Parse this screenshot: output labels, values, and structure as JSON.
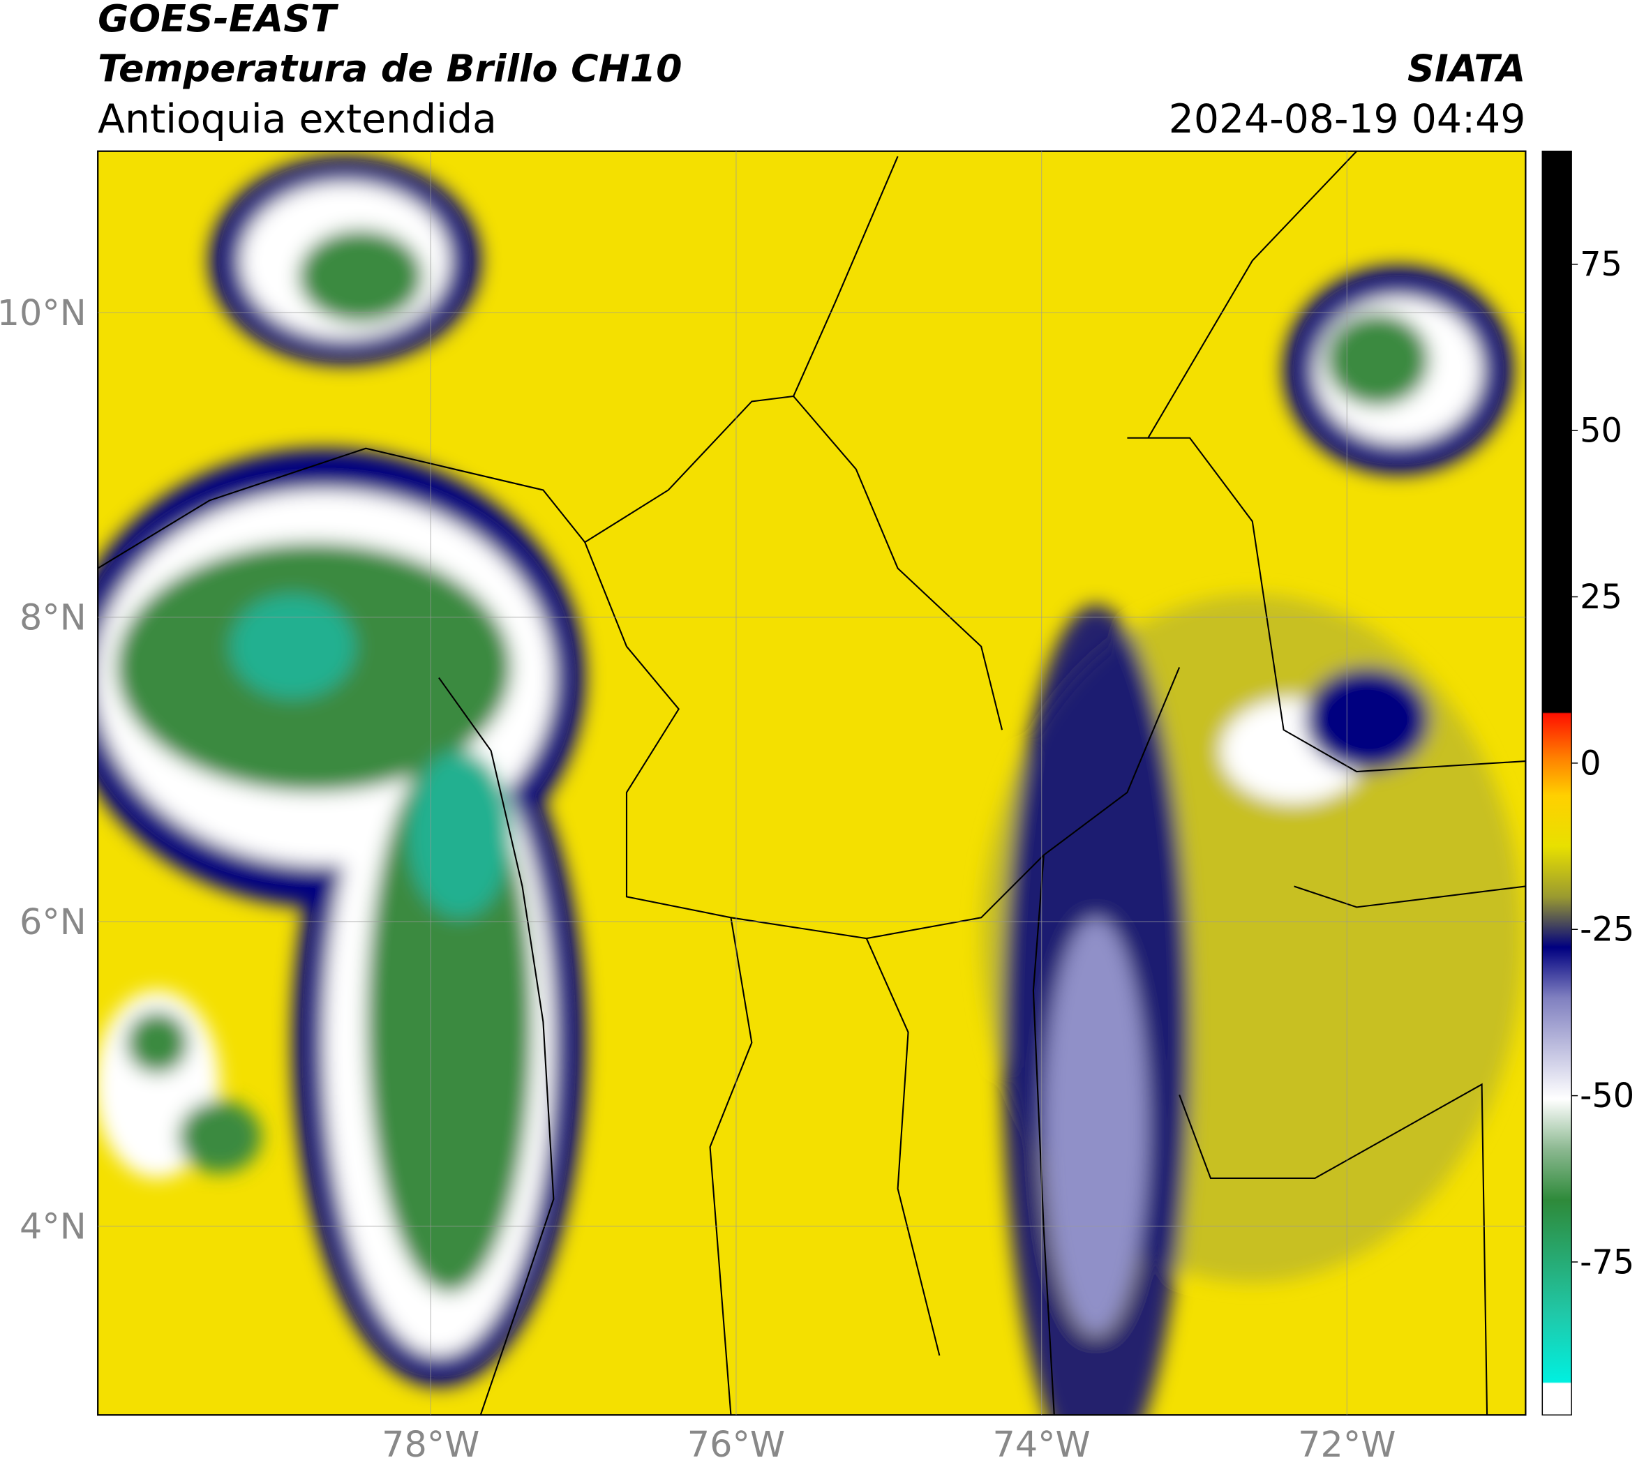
{
  "header": {
    "title": "GOES-EAST",
    "subtitle": "Temperatura de Brillo CH10",
    "region": "Antioquia extendida",
    "agency": "SIATA",
    "timestamp": "2024-08-19 04:49"
  },
  "map": {
    "lonlim": [
      -80.18,
      -70.83
    ],
    "latlim": [
      2.76,
      11.06
    ],
    "lon_ticks": [
      {
        "value": -78,
        "label": "78°W"
      },
      {
        "value": -76,
        "label": "76°W"
      },
      {
        "value": -74,
        "label": "74°W"
      },
      {
        "value": -72,
        "label": "72°W"
      }
    ],
    "lat_ticks": [
      {
        "value": 4,
        "label": "4°N"
      },
      {
        "value": 6,
        "label": "6°N"
      },
      {
        "value": 8,
        "label": "8°N"
      },
      {
        "value": 10,
        "label": "10°N"
      }
    ]
  },
  "colorbar": {
    "lim": [
      -98,
      92
    ],
    "ticks": [
      -75,
      -50,
      -25,
      0,
      25,
      50,
      75
    ]
  }
}
